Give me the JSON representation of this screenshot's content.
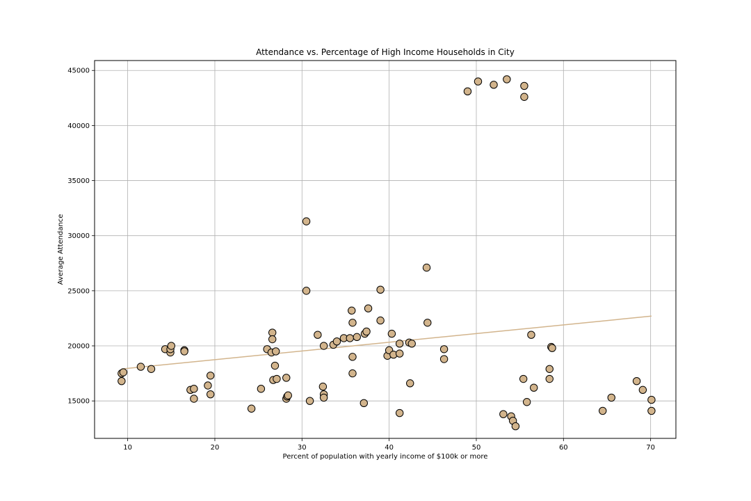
{
  "chart_data": {
    "type": "scatter",
    "title": "Attendance vs. Percentage of High Income Households in City",
    "xlabel": "Percent of population with yearly income of $100k or more",
    "ylabel": "Average Attendance",
    "xlim": [
      6.2,
      72.9
    ],
    "ylim": [
      11600,
      45900
    ],
    "xticks": [
      10,
      20,
      30,
      40,
      50,
      60,
      70
    ],
    "yticks": [
      15000,
      20000,
      25000,
      30000,
      35000,
      40000,
      45000
    ],
    "grid": true,
    "colors": {
      "marker_fill": "#d2b48c",
      "marker_edge": "#000000",
      "trendline": "#d2b48c",
      "grid": "#b0b0b0"
    },
    "series": [
      {
        "points": [
          [
            9.3,
            17500
          ],
          [
            9.5,
            17600
          ],
          [
            9.3,
            16800
          ],
          [
            11.5,
            18100
          ],
          [
            12.7,
            17900
          ],
          [
            14.3,
            19700
          ],
          [
            14.9,
            19400
          ],
          [
            14.9,
            19700
          ],
          [
            15.0,
            20000
          ],
          [
            16.5,
            19600
          ],
          [
            16.5,
            19500
          ],
          [
            17.2,
            16000
          ],
          [
            17.6,
            16100
          ],
          [
            17.6,
            15200
          ],
          [
            19.2,
            16400
          ],
          [
            19.5,
            17300
          ],
          [
            19.5,
            15600
          ],
          [
            24.2,
            14300
          ],
          [
            25.3,
            16100
          ],
          [
            26.0,
            19700
          ],
          [
            26.5,
            19400
          ],
          [
            26.6,
            21200
          ],
          [
            26.6,
            20600
          ],
          [
            26.7,
            16900
          ],
          [
            26.9,
            18200
          ],
          [
            27.0,
            19500
          ],
          [
            27.1,
            17000
          ],
          [
            28.2,
            17100
          ],
          [
            28.2,
            15200
          ],
          [
            28.3,
            15400
          ],
          [
            28.4,
            15500
          ],
          [
            30.5,
            31300
          ],
          [
            30.5,
            25000
          ],
          [
            30.9,
            15000
          ],
          [
            31.8,
            21000
          ],
          [
            32.5,
            20000
          ],
          [
            32.4,
            16300
          ],
          [
            32.5,
            15600
          ],
          [
            32.5,
            15300
          ],
          [
            33.6,
            20100
          ],
          [
            34.0,
            20400
          ],
          [
            34.8,
            20700
          ],
          [
            35.5,
            20700
          ],
          [
            35.7,
            23200
          ],
          [
            35.8,
            22100
          ],
          [
            35.8,
            19000
          ],
          [
            35.8,
            17500
          ],
          [
            36.3,
            20800
          ],
          [
            37.1,
            14800
          ],
          [
            37.2,
            21100
          ],
          [
            37.4,
            21300
          ],
          [
            37.6,
            23400
          ],
          [
            39.0,
            25100
          ],
          [
            39.0,
            22300
          ],
          [
            39.8,
            19100
          ],
          [
            40.0,
            19600
          ],
          [
            40.3,
            21100
          ],
          [
            40.5,
            19200
          ],
          [
            41.2,
            20200
          ],
          [
            41.2,
            19300
          ],
          [
            41.2,
            13900
          ],
          [
            42.3,
            20300
          ],
          [
            42.4,
            16600
          ],
          [
            42.6,
            20200
          ],
          [
            44.3,
            27100
          ],
          [
            44.4,
            22100
          ],
          [
            46.3,
            19700
          ],
          [
            46.3,
            18800
          ],
          [
            49.0,
            43100
          ],
          [
            50.2,
            44000
          ],
          [
            52.0,
            43700
          ],
          [
            53.5,
            44200
          ],
          [
            55.5,
            43600
          ],
          [
            55.5,
            42600
          ],
          [
            53.1,
            13800
          ],
          [
            54.0,
            13600
          ],
          [
            54.2,
            13200
          ],
          [
            54.5,
            12700
          ],
          [
            55.4,
            17000
          ],
          [
            55.8,
            14900
          ],
          [
            56.3,
            21000
          ],
          [
            56.6,
            16200
          ],
          [
            58.4,
            17900
          ],
          [
            58.4,
            17000
          ],
          [
            58.6,
            19900
          ],
          [
            58.7,
            19800
          ],
          [
            64.5,
            14100
          ],
          [
            65.5,
            15300
          ],
          [
            68.4,
            16800
          ],
          [
            69.1,
            16000
          ],
          [
            70.1,
            15100
          ],
          [
            70.1,
            14100
          ]
        ]
      }
    ],
    "trendline": {
      "x": [
        9.3,
        70.1
      ],
      "y": [
        17900,
        22700
      ]
    }
  }
}
